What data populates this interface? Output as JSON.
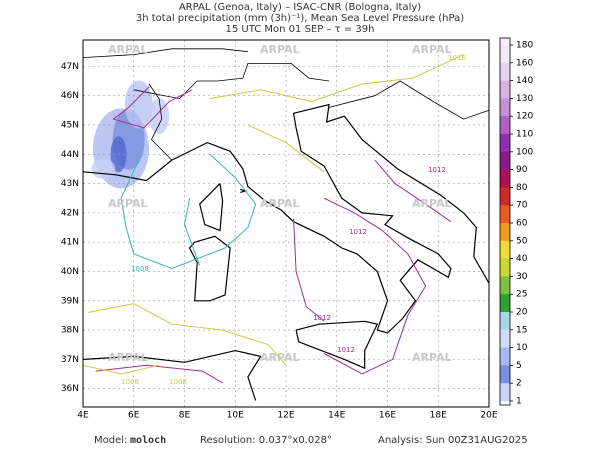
{
  "header": {
    "lines": [
      "ARPAL (Genoa, Italy)  –  ISAC-CNR (Bologna, Italy)",
      "3h total precipitation (mm (3h)⁻¹), Mean Sea Level Pressure (hPa)",
      "15 UTC Mon 01 SEP  –  τ = 39h"
    ]
  },
  "map": {
    "lon_labels": [
      "4E",
      "6E",
      "8E",
      "10E",
      "12E",
      "14E",
      "16E",
      "18E",
      "20E"
    ],
    "lat_labels": [
      "47N",
      "46N",
      "45N",
      "44N",
      "43N",
      "42N",
      "41N",
      "40N",
      "39N",
      "38N",
      "37N",
      "36N"
    ],
    "watermark": "ARPAL",
    "contour_labels": [
      "1012",
      "1012",
      "1012",
      "1012",
      "1008",
      "1008",
      "1008",
      "1016"
    ]
  },
  "colorbar": {
    "labels": [
      "180",
      "160",
      "140",
      "130",
      "120",
      "110",
      "100",
      "90",
      "80",
      "70",
      "60",
      "50",
      "40",
      "30",
      "25",
      "20",
      "15",
      "10",
      "5",
      "2",
      "1"
    ]
  },
  "footer": {
    "model_label": "Model:",
    "model": "moloch",
    "resolution": "Resolution: 0.037°x0.028°",
    "analysis": "Analysis: Sun 00Z31AUG2025"
  }
}
